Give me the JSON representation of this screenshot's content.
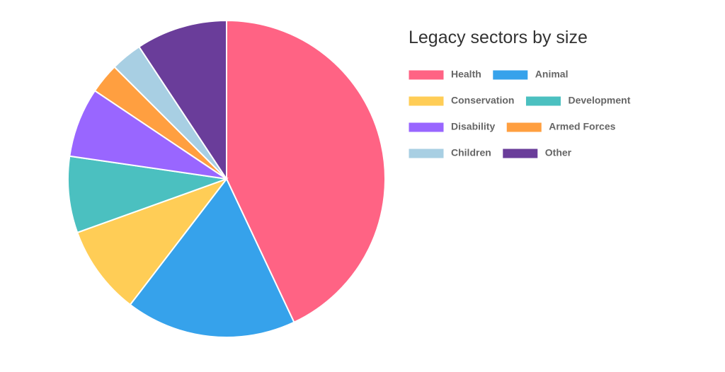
{
  "chart_data": {
    "type": "pie",
    "title": "Legacy sectors by size",
    "categories": [
      "Health",
      "Animal",
      "Conservation",
      "Development",
      "Disability",
      "Armed Forces",
      "Children",
      "Other"
    ],
    "values": [
      43,
      17.4,
      9.1,
      7.8,
      7.1,
      3.1,
      3.2,
      9.3
    ],
    "colors": [
      "#ff6384",
      "#36a2eb",
      "#ffcd56",
      "#4bc0c0",
      "#9966ff",
      "#ff9f40",
      "#a8cfe3",
      "#6a3d9a"
    ]
  }
}
